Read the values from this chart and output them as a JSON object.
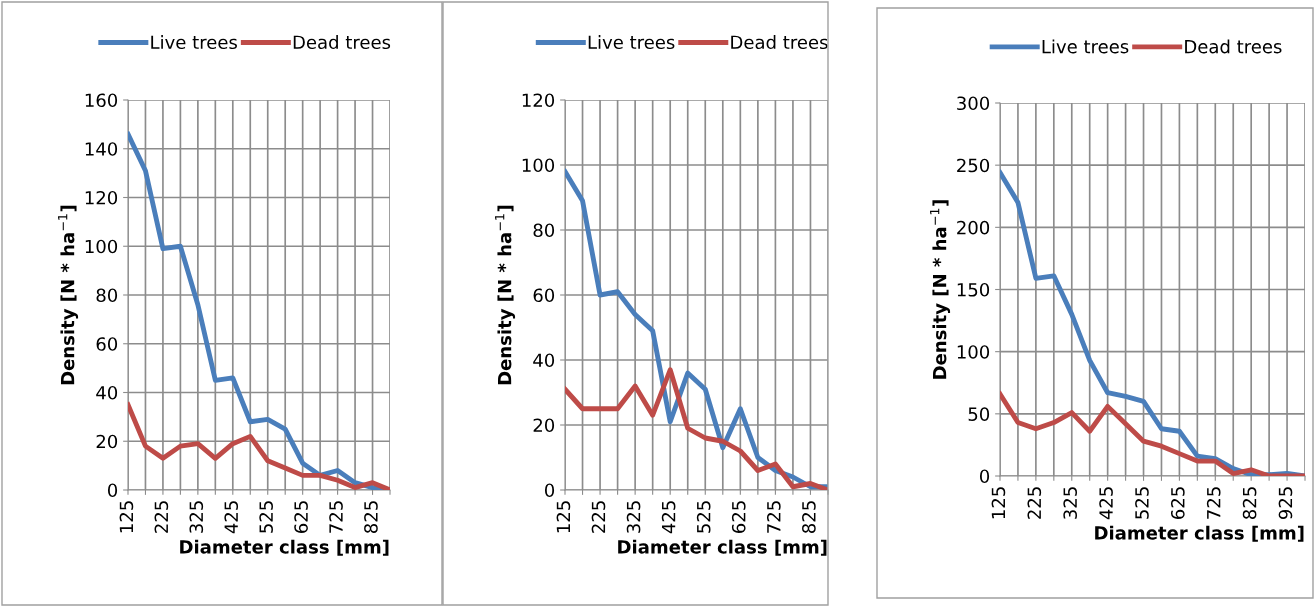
{
  "chart_data": [
    {
      "type": "line",
      "xlabel": "Diameter class [mm]",
      "ylabel": "Density [N * ha$^{−1}$]",
      "categories": [
        "125",
        null,
        "225",
        null,
        "325",
        null,
        "425",
        null,
        "525",
        null,
        "625",
        null,
        "725",
        null,
        "825",
        null
      ],
      "series": [
        {
          "name": "Live trees",
          "color": "#4a7ebb",
          "values": [
            146,
            131,
            99,
            100,
            76,
            45,
            46,
            28,
            29,
            25,
            11,
            6,
            8,
            3,
            1,
            0
          ]
        },
        {
          "name": "Dead trees",
          "color": "#be4b48",
          "values": [
            35,
            18,
            13,
            18,
            19,
            13,
            19,
            22,
            12,
            9,
            6,
            6,
            4,
            1,
            3,
            0
          ]
        }
      ],
      "ylim": [
        0,
        160
      ],
      "yticks": [
        0,
        20,
        40,
        60,
        80,
        100,
        120,
        140,
        160
      ],
      "grid": true,
      "legend": "top",
      "marker": "none",
      "line_style": "solid"
    },
    {
      "type": "line",
      "xlabel": "Diameter class [mm]",
      "ylabel": "Density [N * ha$^{−1}$]",
      "categories": [
        "125",
        null,
        "225",
        null,
        "325",
        null,
        "425",
        null,
        "525",
        null,
        "625",
        null,
        "725",
        null,
        "825",
        null
      ],
      "series": [
        {
          "name": "Live trees",
          "color": "#4a7ebb",
          "values": [
            98,
            89,
            60,
            61,
            54,
            49,
            21,
            36,
            31,
            13,
            25,
            10,
            6,
            4,
            1,
            1
          ]
        },
        {
          "name": "Dead trees",
          "color": "#be4b48",
          "values": [
            31,
            25,
            25,
            25,
            32,
            23,
            37,
            19,
            16,
            15,
            12,
            6,
            8,
            1,
            2,
            0
          ]
        }
      ],
      "ylim": [
        0,
        120
      ],
      "yticks": [
        0,
        20,
        40,
        60,
        80,
        100,
        120
      ],
      "grid": true,
      "legend": "top",
      "marker": "none",
      "line_style": "solid"
    },
    {
      "type": "line",
      "xlabel": "Diameter class [mm]",
      "ylabel": "Density [N * ha$^{−1}$]",
      "categories": [
        "125",
        null,
        "225",
        null,
        "325",
        null,
        "425",
        null,
        "525",
        null,
        "625",
        null,
        "725",
        null,
        "825",
        null,
        "925",
        null
      ],
      "series": [
        {
          "name": "Live trees",
          "color": "#4a7ebb",
          "values": [
            244,
            220,
            159,
            161,
            130,
            93,
            67,
            64,
            60,
            38,
            36,
            16,
            14,
            6,
            1,
            1,
            2,
            0
          ]
        },
        {
          "name": "Dead trees",
          "color": "#be4b48",
          "values": [
            66,
            43,
            38,
            43,
            51,
            36,
            56,
            42,
            28,
            24,
            18,
            12,
            12,
            2,
            5,
            0,
            0,
            0
          ]
        }
      ],
      "ylim": [
        0,
        300
      ],
      "yticks": [
        0,
        50,
        100,
        150,
        200,
        250,
        300
      ],
      "grid": true,
      "legend": "top",
      "marker": "none",
      "line_style": "solid"
    }
  ]
}
